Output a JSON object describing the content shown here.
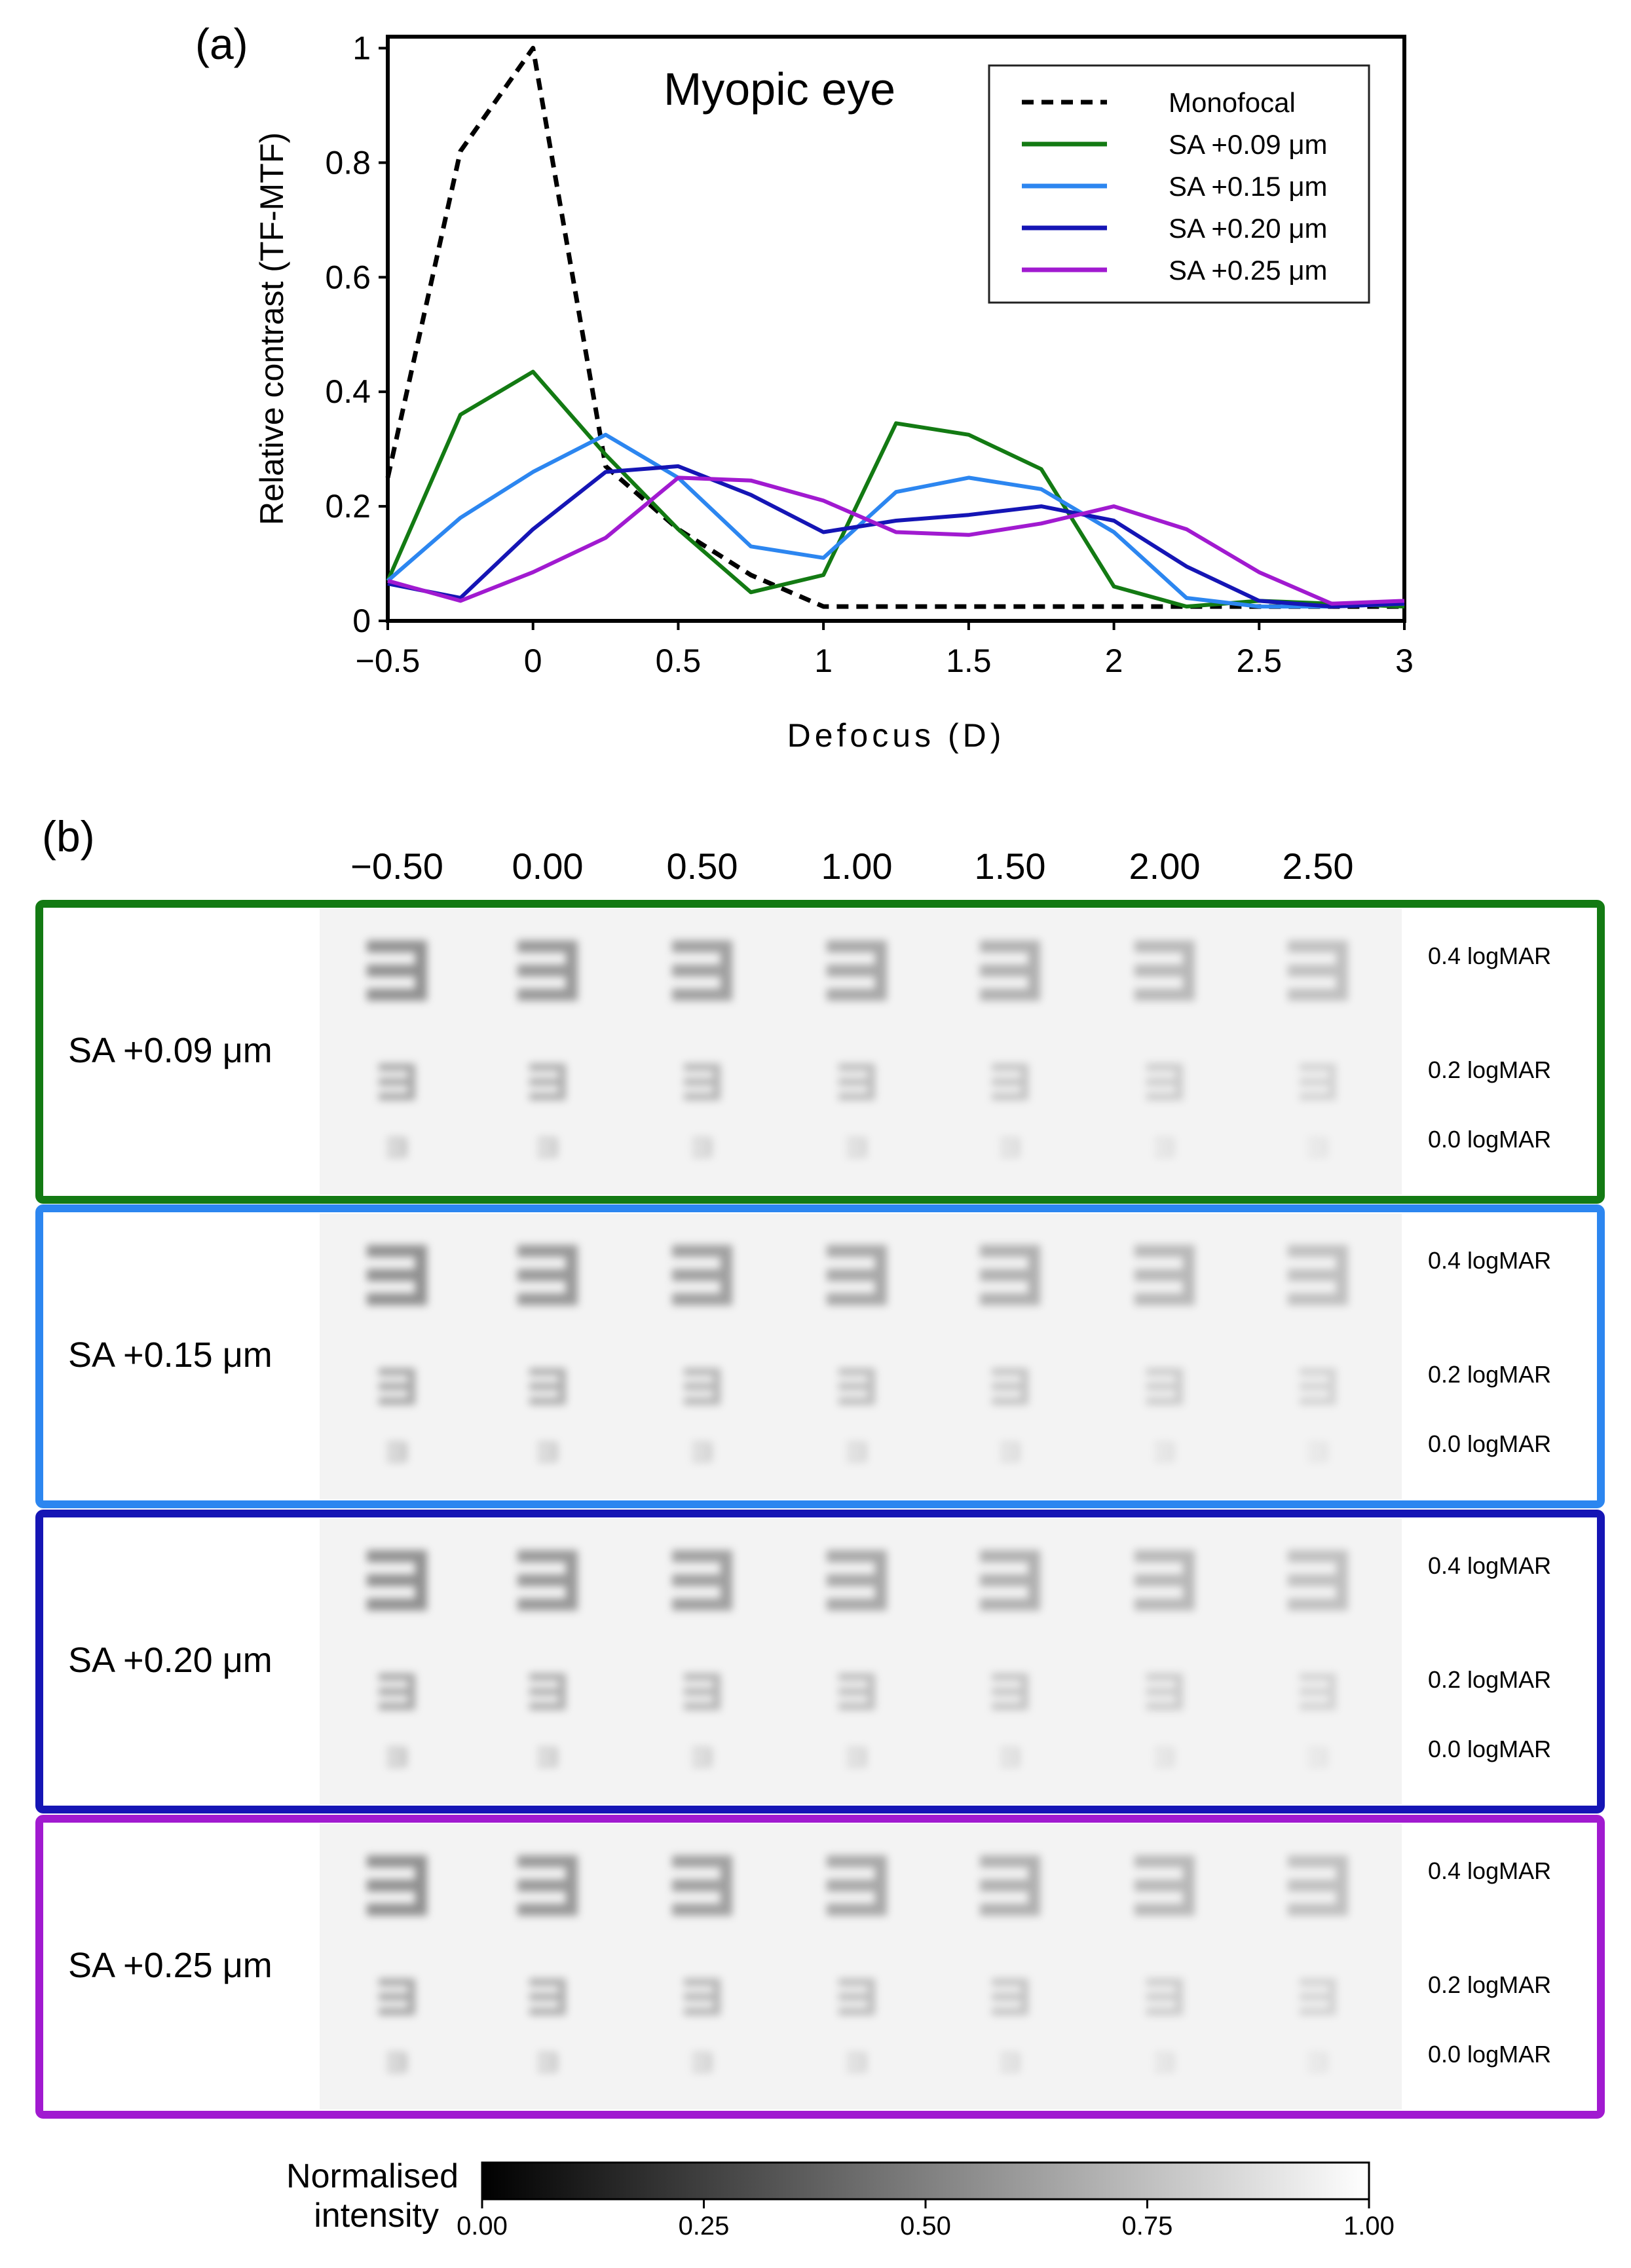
{
  "panel_a_label": "(a)",
  "panel_b_label": "(b)",
  "chart_data": {
    "type": "line",
    "title": "Myopic eye",
    "xlabel": "Defocus (D)",
    "ylabel": "Relative contrast (TF-MTF)",
    "xlim": [
      -0.5,
      3
    ],
    "ylim": [
      0,
      1.02
    ],
    "xticks": [
      -0.5,
      0,
      0.5,
      1,
      1.5,
      2,
      2.5,
      3
    ],
    "xtick_labels": [
      "−0.5",
      "0",
      "0.5",
      "1",
      "1.5",
      "2",
      "2.5",
      "3"
    ],
    "yticks": [
      0,
      0.2,
      0.4,
      0.6,
      0.8,
      1
    ],
    "ytick_labels": [
      "0",
      "0.2",
      "0.4",
      "0.6",
      "0.8",
      "1"
    ],
    "legend_position": "top-right",
    "x": [
      -0.5,
      -0.25,
      0,
      0.25,
      0.5,
      0.75,
      1,
      1.25,
      1.5,
      1.75,
      2,
      2.25,
      2.5,
      2.75,
      3
    ],
    "series": [
      {
        "name": "Monofocal",
        "color": "#000000",
        "dash": true,
        "values": [
          0.25,
          0.82,
          1.0,
          0.27,
          0.16,
          0.08,
          0.025,
          0.025,
          0.025,
          0.025,
          0.025,
          0.025,
          0.025,
          0.025,
          0.025
        ]
      },
      {
        "name": "SA +0.09 μm",
        "color": "#137a13",
        "dash": false,
        "values": [
          0.07,
          0.36,
          0.435,
          0.29,
          0.16,
          0.05,
          0.08,
          0.345,
          0.325,
          0.265,
          0.06,
          0.025,
          0.035,
          0.03,
          0.025
        ]
      },
      {
        "name": "SA +0.15 μm",
        "color": "#2c86f0",
        "dash": false,
        "values": [
          0.07,
          0.18,
          0.26,
          0.325,
          0.25,
          0.13,
          0.11,
          0.225,
          0.25,
          0.23,
          0.155,
          0.04,
          0.025,
          0.025,
          0.03
        ]
      },
      {
        "name": "SA +0.20 μm",
        "color": "#1515b5",
        "dash": false,
        "values": [
          0.065,
          0.04,
          0.16,
          0.26,
          0.27,
          0.22,
          0.155,
          0.175,
          0.185,
          0.2,
          0.175,
          0.095,
          0.035,
          0.025,
          0.03
        ]
      },
      {
        "name": "SA +0.25 μm",
        "color": "#a11ad0",
        "dash": false,
        "values": [
          0.07,
          0.035,
          0.085,
          0.145,
          0.25,
          0.245,
          0.21,
          0.155,
          0.15,
          0.17,
          0.2,
          0.16,
          0.085,
          0.03,
          0.035
        ]
      }
    ]
  },
  "sim_grid": {
    "defocus_labels": [
      "−0.50",
      "0.00",
      "0.50",
      "1.00",
      "1.50",
      "2.00",
      "2.50"
    ],
    "acuity_labels": [
      "0.4 logMAR",
      "0.2 logMAR",
      "0.0 logMAR"
    ],
    "rows": [
      {
        "label": "SA +0.09 μm",
        "color": "#137a13"
      },
      {
        "label": "SA +0.15 μm",
        "color": "#2c86f0"
      },
      {
        "label": "SA +0.20 μm",
        "color": "#1515b5"
      },
      {
        "label": "SA +0.25 μm",
        "color": "#a11ad0"
      }
    ]
  },
  "colorbar": {
    "label_line1": "Normalised",
    "label_line2": "intensity",
    "ticks": [
      "0.00",
      "0.25",
      "0.50",
      "0.75",
      "1.00"
    ],
    "gradient": [
      "#000000",
      "#ffffff"
    ]
  }
}
